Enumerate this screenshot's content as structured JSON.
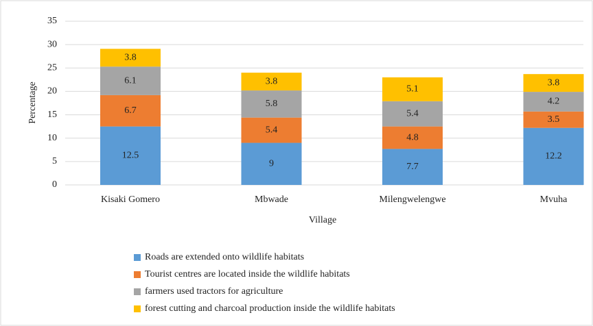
{
  "chart_data": {
    "type": "stacked_bar",
    "x_label": "Village",
    "y_label": "Percentage",
    "categories": [
      "Kisaki Gomero",
      "Mbwade",
      "Milengwelengwe",
      "Mvuha"
    ],
    "series": [
      {
        "name": "Roads are extended onto wildlife habitats",
        "color": "#5b9bd5",
        "values": [
          12.5,
          9,
          7.7,
          12.2
        ]
      },
      {
        "name": "Tourist centres are located inside the wildlife habitats",
        "color": "#ed7d31",
        "values": [
          6.7,
          5.4,
          4.8,
          3.5
        ]
      },
      {
        "name": "farmers used tractors for agriculture",
        "color": "#a5a5a5",
        "values": [
          6.1,
          5.8,
          5.4,
          4.2
        ]
      },
      {
        "name": "forest cutting and charcoal production inside the wildlife habitats",
        "color": "#ffc000",
        "values": [
          3.8,
          3.8,
          5.1,
          3.8
        ]
      }
    ],
    "ylim": [
      0,
      35
    ],
    "yticks": [
      0,
      5,
      10,
      15,
      20,
      25,
      30,
      35
    ],
    "grid": true,
    "legend": "bottom"
  }
}
